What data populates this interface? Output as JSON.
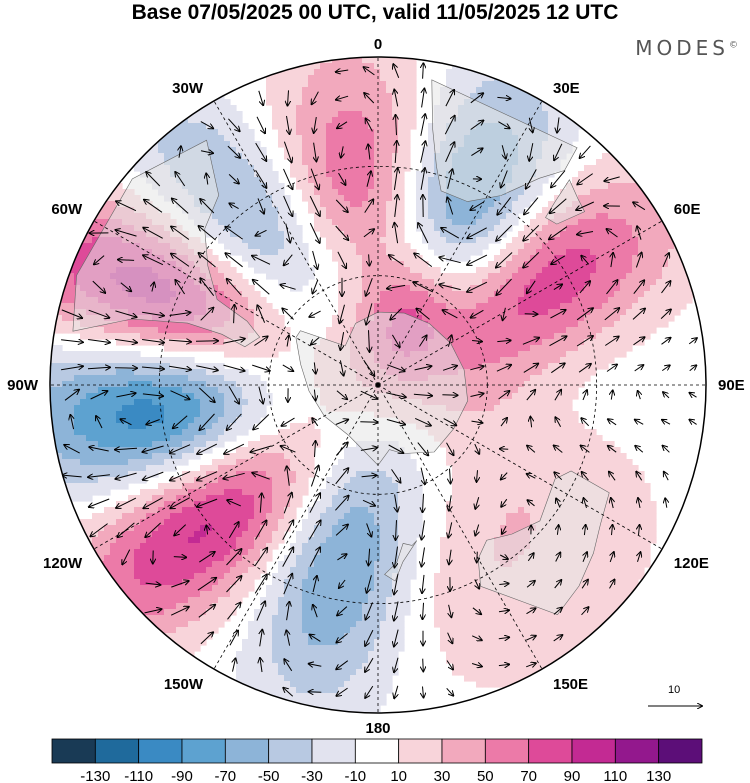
{
  "title": "Base 07/05/2025 00 UTC, valid 11/05/2025 12 UTC",
  "brand": "MODES",
  "brand_mark": "©",
  "longitude_labels": [
    {
      "text": "0",
      "lon": 0
    },
    {
      "text": "30E",
      "lon": 30
    },
    {
      "text": "60E",
      "lon": 60
    },
    {
      "text": "90E",
      "lon": 90
    },
    {
      "text": "120E",
      "lon": 120
    },
    {
      "text": "150E",
      "lon": 150
    },
    {
      "text": "180",
      "lon": 180
    },
    {
      "text": "150W",
      "lon": -150
    },
    {
      "text": "120W",
      "lon": -120
    },
    {
      "text": "90W",
      "lon": -90
    },
    {
      "text": "60W",
      "lon": -60
    },
    {
      "text": "30W",
      "lon": -30
    }
  ],
  "reference_vector": {
    "label": "10"
  },
  "colorbar": {
    "labels": [
      "-130",
      "-110",
      "-90",
      "-70",
      "-50",
      "-30",
      "-10",
      "10",
      "30",
      "50",
      "70",
      "90",
      "110",
      "130"
    ],
    "colors": [
      "#193a55",
      "#1f6a9c",
      "#3a8ac3",
      "#5da2d0",
      "#8db4d8",
      "#b8c9e2",
      "#e2e3ef",
      "#ffffff",
      "#f8d4da",
      "#f2a9bd",
      "#ec7aa8",
      "#de4a99",
      "#c32a93",
      "#93188d",
      "#5c0e78"
    ]
  },
  "anomaly_centers": [
    {
      "lon": -5,
      "lat": -50,
      "value": 95,
      "sx": 0.18,
      "sy": 0.36
    },
    {
      "lon": 25,
      "lat": -48,
      "value": -105,
      "sx": 0.17,
      "sy": 0.36
    },
    {
      "lon": 58,
      "lat": -45,
      "value": 110,
      "sx": 0.17,
      "sy": 0.34
    },
    {
      "lon": 20,
      "lat": -70,
      "value": 70,
      "sx": 0.11,
      "sy": 0.16
    },
    {
      "lon": -40,
      "lat": -52,
      "value": -110,
      "sx": 0.17,
      "sy": 0.44
    },
    {
      "lon": -68,
      "lat": -50,
      "value": 140,
      "sx": 0.17,
      "sy": 0.47
    },
    {
      "lon": -95,
      "lat": -48,
      "value": -140,
      "sx": 0.18,
      "sy": 0.4
    },
    {
      "lon": -128,
      "lat": -42,
      "value": 125,
      "sx": 0.17,
      "sy": 0.44
    },
    {
      "lon": -168,
      "lat": -48,
      "value": -95,
      "sx": 0.17,
      "sy": 0.34
    },
    {
      "lon": 78,
      "lat": -55,
      "value": -30,
      "sx": 0.3,
      "sy": 0.25
    },
    {
      "lon": 135,
      "lat": -40,
      "value": 25,
      "sx": 0.3,
      "sy": 0.3
    },
    {
      "lon": 155,
      "lat": -45,
      "value": 20,
      "sx": 0.3,
      "sy": 0.3
    },
    {
      "lon": -100,
      "lat": -25,
      "value": -20,
      "sx": 0.4,
      "sy": 0.3
    },
    {
      "lon": -60,
      "lat": -25,
      "value": 25,
      "sx": 0.4,
      "sy": 0.3
    }
  ]
}
